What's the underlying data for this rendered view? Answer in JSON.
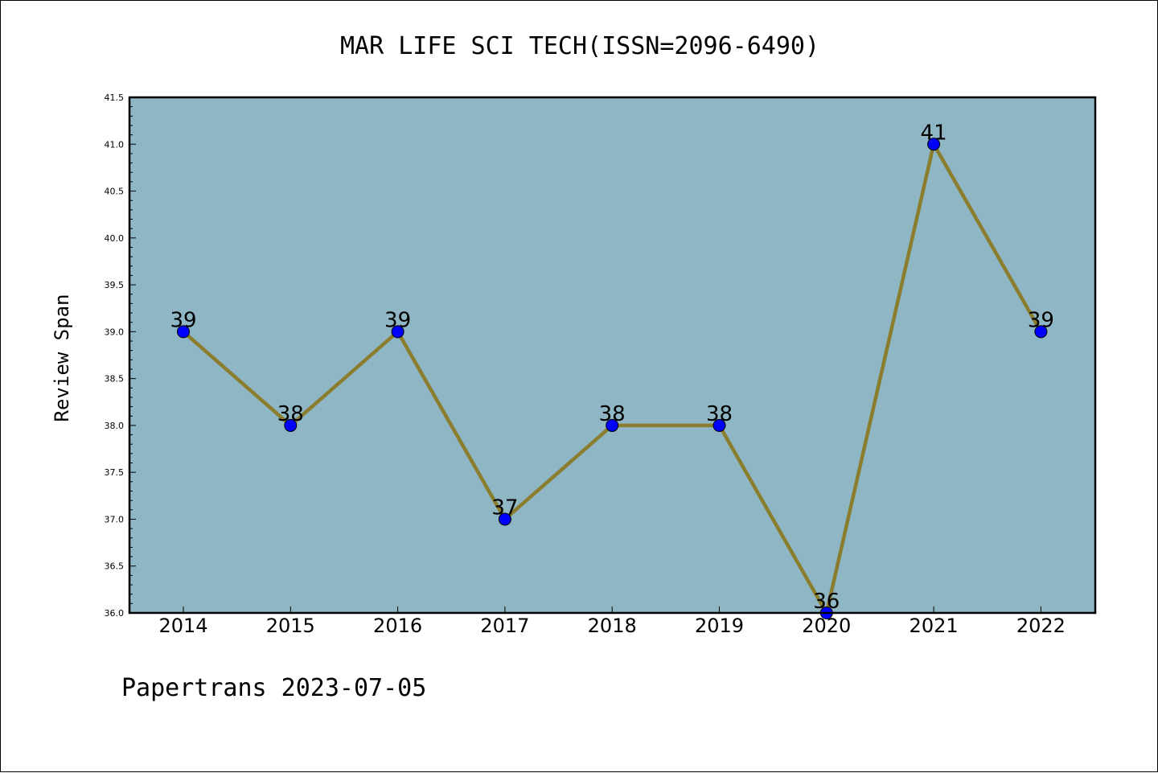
{
  "chart_data": {
    "type": "line",
    "title": "MAR LIFE SCI TECH(ISSN=2096-6490)",
    "ylabel": "Review Span",
    "xlabel": "",
    "categories": [
      "2014",
      "2015",
      "2016",
      "2017",
      "2018",
      "2019",
      "2020",
      "2021",
      "2022"
    ],
    "values": [
      39,
      38,
      39,
      37,
      38,
      38,
      36,
      41,
      39
    ],
    "data_labels": [
      "39",
      "38",
      "39",
      "37",
      "38",
      "38",
      "36",
      "41",
      "39"
    ],
    "ylim": [
      36.0,
      41.5
    ],
    "yticks": [
      "36.0",
      "36.5",
      "37.0",
      "37.5",
      "38.0",
      "38.5",
      "39.0",
      "39.5",
      "40.0",
      "40.5",
      "41.0",
      "41.5"
    ],
    "grid": false,
    "colors": {
      "plot_background": "#8fb6c4",
      "line": "#8b7d2e",
      "marker": "#0000ff"
    }
  },
  "footer": "Papertrans 2023-07-05"
}
